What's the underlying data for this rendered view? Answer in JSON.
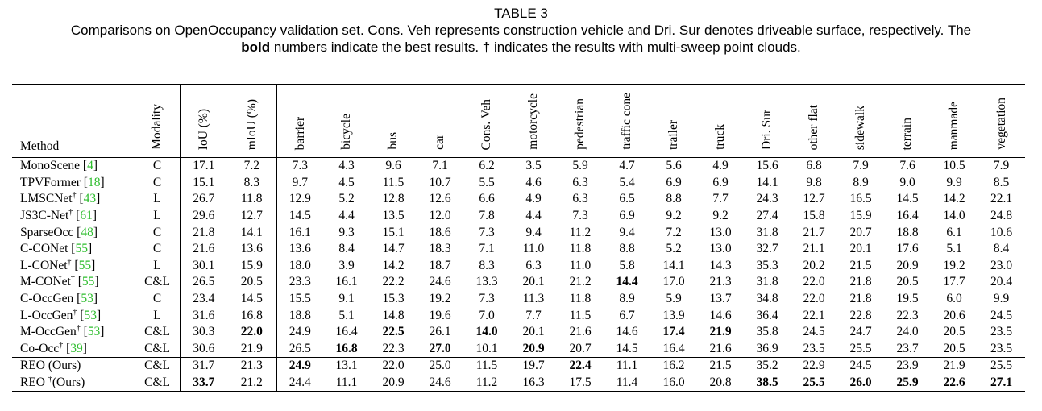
{
  "caption": {
    "table_number": "TABLE 3",
    "line1": "Comparisons on OpenOccupancy validation set. Cons. Veh represents construction vehicle and Dri. Sur denotes driveable surface, respectively. The",
    "bold_word": "bold",
    "line2_rest": " numbers indicate the best results. † indicates the results with multi-sweep point clouds."
  },
  "table": {
    "columns": {
      "method": "Method",
      "modality": "Modality",
      "iou": "IoU (%)",
      "miou": "mIoU (%)",
      "classes": [
        "barrier",
        "bicycle",
        "bus",
        "car",
        "Cons. Veh",
        "motorcycle",
        "pedestrian",
        "traffic cone",
        "trailer",
        "truck",
        "Dri. Sur",
        "other flat",
        "sidewalk",
        "terrain",
        "manmade",
        "vegetation"
      ]
    },
    "rows": [
      {
        "name": "MonoScene",
        "dagger": "",
        "ref": "4",
        "modality": "C",
        "iou": "17.1",
        "miou": "7.2",
        "values": [
          "7.3",
          "4.3",
          "9.6",
          "7.1",
          "6.2",
          "3.5",
          "5.9",
          "4.7",
          "5.6",
          "4.9",
          "15.6",
          "6.8",
          "7.9",
          "7.6",
          "10.5",
          "7.9"
        ],
        "bold": []
      },
      {
        "name": "TPVFormer",
        "dagger": "",
        "ref": "18",
        "modality": "C",
        "iou": "15.1",
        "miou": "8.3",
        "values": [
          "9.7",
          "4.5",
          "11.5",
          "10.7",
          "5.5",
          "4.6",
          "6.3",
          "5.4",
          "6.9",
          "6.9",
          "14.1",
          "9.8",
          "8.9",
          "9.0",
          "9.9",
          "8.5"
        ],
        "bold": []
      },
      {
        "name": "LMSCNet",
        "dagger": "†",
        "ref": "43",
        "modality": "L",
        "iou": "26.7",
        "miou": "11.8",
        "values": [
          "12.9",
          "5.2",
          "12.8",
          "12.6",
          "6.6",
          "4.9",
          "6.3",
          "6.5",
          "8.8",
          "7.7",
          "24.3",
          "12.7",
          "16.5",
          "14.5",
          "14.2",
          "22.1"
        ],
        "bold": []
      },
      {
        "name": "JS3C-Net",
        "dagger": "†",
        "ref": "61",
        "modality": "L",
        "iou": "29.6",
        "miou": "12.7",
        "values": [
          "14.5",
          "4.4",
          "13.5",
          "12.0",
          "7.8",
          "4.4",
          "7.3",
          "6.9",
          "9.2",
          "9.2",
          "27.4",
          "15.8",
          "15.9",
          "16.4",
          "14.0",
          "24.8"
        ],
        "bold": []
      },
      {
        "name": "SparseOcc",
        "dagger": "",
        "ref": "48",
        "modality": "C",
        "iou": "21.8",
        "miou": "14.1",
        "values": [
          "16.1",
          "9.3",
          "15.1",
          "18.6",
          "7.3",
          "9.4",
          "11.2",
          "9.4",
          "7.2",
          "13.0",
          "31.8",
          "21.7",
          "20.7",
          "18.8",
          "6.1",
          "10.6"
        ],
        "bold": []
      },
      {
        "name": "C-CONet",
        "dagger": "",
        "ref": "55",
        "modality": "C",
        "iou": "21.6",
        "miou": "13.6",
        "values": [
          "13.6",
          "8.4",
          "14.7",
          "18.3",
          "7.1",
          "11.0",
          "11.8",
          "8.8",
          "5.2",
          "13.0",
          "32.7",
          "21.1",
          "20.1",
          "17.6",
          "5.1",
          "8.4"
        ],
        "bold": []
      },
      {
        "name": "L-CONet",
        "dagger": "†",
        "ref": "55",
        "modality": "L",
        "iou": "30.1",
        "miou": "15.9",
        "values": [
          "18.0",
          "3.9",
          "14.2",
          "18.7",
          "8.3",
          "6.3",
          "11.0",
          "5.8",
          "14.1",
          "14.3",
          "35.3",
          "20.2",
          "21.5",
          "20.9",
          "19.2",
          "23.0"
        ],
        "bold": []
      },
      {
        "name": "M-CONet",
        "dagger": "†",
        "ref": "55",
        "modality": "C&L",
        "iou": "26.5",
        "miou": "20.5",
        "values": [
          "23.3",
          "16.1",
          "22.2",
          "24.6",
          "13.3",
          "20.1",
          "21.2",
          "14.4",
          "17.0",
          "21.3",
          "31.8",
          "22.0",
          "21.8",
          "20.5",
          "17.7",
          "20.4"
        ],
        "bold": [
          7
        ]
      },
      {
        "name": "C-OccGen",
        "dagger": "",
        "ref": "53",
        "modality": "C",
        "iou": "23.4",
        "miou": "14.5",
        "values": [
          "15.5",
          "9.1",
          "15.3",
          "19.2",
          "7.3",
          "11.3",
          "11.8",
          "8.9",
          "5.9",
          "13.7",
          "34.8",
          "22.0",
          "21.8",
          "19.5",
          "6.0",
          "9.9"
        ],
        "bold": []
      },
      {
        "name": "L-OccGen",
        "dagger": "†",
        "ref": "53",
        "modality": "L",
        "iou": "31.6",
        "miou": "16.8",
        "values": [
          "18.8",
          "5.1",
          "14.8",
          "19.6",
          "7.0",
          "7.7",
          "11.5",
          "6.7",
          "13.9",
          "14.6",
          "36.4",
          "22.1",
          "22.8",
          "22.3",
          "20.6",
          "24.5"
        ],
        "bold": []
      },
      {
        "name": "M-OccGen",
        "dagger": "†",
        "ref": "53",
        "modality": "C&L",
        "iou": "30.3",
        "miou": "22.0",
        "miou_bold": true,
        "values": [
          "24.9",
          "16.4",
          "22.5",
          "26.1",
          "14.0",
          "20.1",
          "21.6",
          "14.6",
          "17.4",
          "21.9",
          "35.8",
          "24.5",
          "24.7",
          "24.0",
          "20.5",
          "23.5"
        ],
        "bold": [
          2,
          4,
          8,
          9
        ]
      },
      {
        "name": "Co-Occ",
        "dagger": "†",
        "ref": "39",
        "modality": "C&L",
        "iou": "30.6",
        "miou": "21.9",
        "values": [
          "26.5",
          "16.8",
          "22.3",
          "27.0",
          "10.1",
          "20.9",
          "20.7",
          "14.5",
          "16.4",
          "21.6",
          "36.9",
          "23.5",
          "25.5",
          "23.7",
          "20.5",
          "23.5"
        ],
        "bold": [
          1,
          3,
          5
        ]
      },
      {
        "name": "REO (Ours)",
        "dagger": "",
        "ref": "",
        "modality": "C&L",
        "iou": "31.7",
        "miou": "21.3",
        "values": [
          "24.9",
          "13.1",
          "22.0",
          "25.0",
          "11.5",
          "19.7",
          "22.4",
          "11.1",
          "16.2",
          "21.5",
          "35.2",
          "22.9",
          "24.5",
          "23.9",
          "21.9",
          "25.5"
        ],
        "bold": [
          0,
          6
        ]
      },
      {
        "name": "REO ",
        "dagger": "†",
        "name_suffix": "(Ours)",
        "ref": "",
        "modality": "C&L",
        "iou": "33.7",
        "iou_bold": true,
        "miou": "21.2",
        "values": [
          "24.4",
          "11.1",
          "20.9",
          "24.6",
          "11.2",
          "16.3",
          "17.5",
          "11.4",
          "16.0",
          "20.8",
          "38.5",
          "25.5",
          "26.0",
          "25.9",
          "22.6",
          "27.1"
        ],
        "bold": [
          10,
          11,
          12,
          13,
          14,
          15
        ]
      }
    ]
  }
}
